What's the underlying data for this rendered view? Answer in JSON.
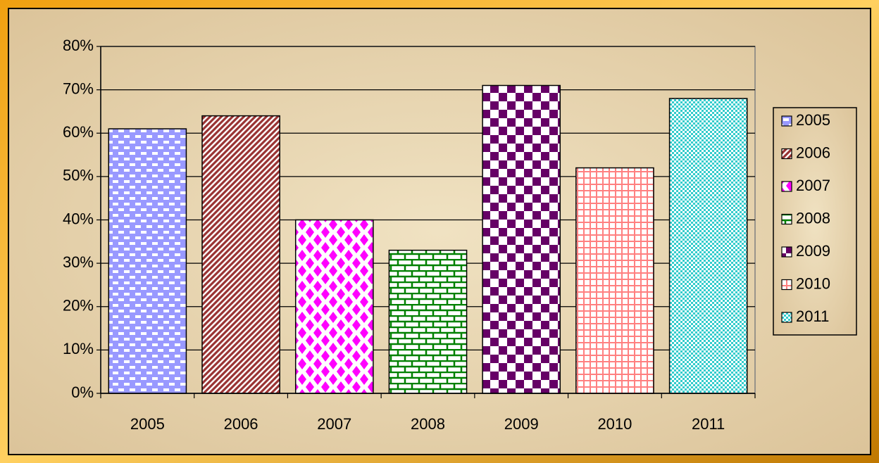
{
  "chart_data": {
    "type": "bar",
    "categories": [
      "2005",
      "2006",
      "2007",
      "2008",
      "2009",
      "2010",
      "2011"
    ],
    "values": [
      61,
      64,
      40,
      33,
      71,
      52,
      68
    ],
    "colors": [
      "#9999ff",
      "#993333",
      "#ff00ff",
      "#008000",
      "#660066",
      "#ff8080",
      "#33cccc"
    ],
    "ylim": [
      0,
      80
    ],
    "yticks": [
      {
        "value": 0,
        "label": "0%"
      },
      {
        "value": 10,
        "label": "10%"
      },
      {
        "value": 20,
        "label": "20%"
      },
      {
        "value": 30,
        "label": "30%"
      },
      {
        "value": 40,
        "label": "40%"
      },
      {
        "value": 50,
        "label": "50%"
      },
      {
        "value": 60,
        "label": "60%"
      },
      {
        "value": 70,
        "label": "70%"
      },
      {
        "value": 80,
        "label": "80%"
      }
    ],
    "grid": true,
    "legend": "right"
  }
}
